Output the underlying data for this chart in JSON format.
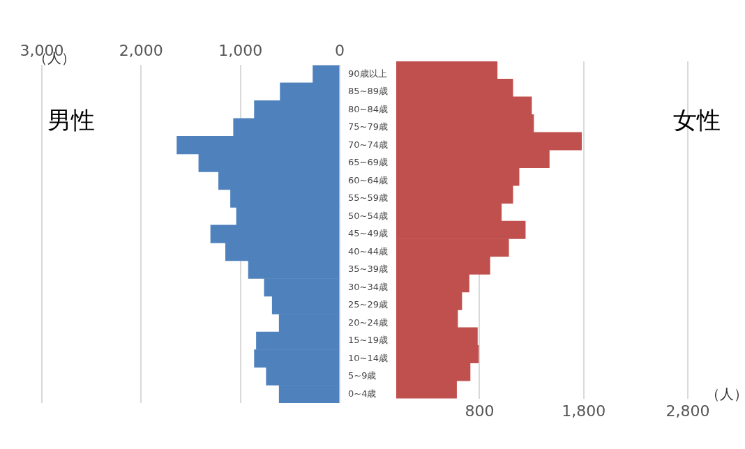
{
  "chart_data": [
    {
      "type": "bar",
      "orientation": "horizontal",
      "title": "男性",
      "xlabel": "（人）",
      "categories": [
        "90歳以上",
        "85~89歳",
        "80~84歳",
        "75~79歳",
        "70~74歳",
        "65~69歳",
        "60~64歳",
        "55~59歳",
        "50~54歳",
        "45~49歳",
        "40~44歳",
        "35~39歳",
        "30~34歳",
        "25~29歳",
        "20~24歳",
        "15~19歳",
        "10~14歳",
        "5~9歳",
        "0~4歳"
      ],
      "series": [
        {
          "color": "#4f81bd",
          "values": [
            270,
            600,
            860,
            1070,
            1640,
            1420,
            1220,
            1100,
            1040,
            1300,
            1150,
            920,
            760,
            680,
            610,
            840,
            860,
            740,
            610
          ]
        }
      ],
      "xlim": [
        3000,
        0
      ],
      "xticks": [
        {
          "value": 3000,
          "label": "3,000"
        },
        {
          "value": 2000,
          "label": "2,000"
        },
        {
          "value": 1000,
          "label": "1,000"
        },
        0
      ],
      "grid": "x",
      "legend": false
    },
    {
      "type": "bar",
      "orientation": "horizontal",
      "title": "女性",
      "xlabel": "（人）",
      "categories": [
        null,
        null,
        null,
        null,
        null,
        null,
        null,
        null,
        null,
        null,
        null,
        null,
        null,
        null,
        null,
        null,
        null,
        null,
        null
      ],
      "series": [
        {
          "color": "#c0504d",
          "values": [
            970,
            1120,
            1300,
            1320,
            1780,
            1470,
            1180,
            1120,
            1010,
            1240,
            1080,
            900,
            700,
            630,
            590,
            780,
            790,
            710,
            580
          ]
        }
      ],
      "xlim": [
        0,
        2800
      ],
      "xticks": [
        800,
        {
          "value": 1800,
          "label": "1,800"
        },
        {
          "value": 2800,
          "label": "2,800"
        }
      ],
      "grid": "x",
      "legend": false,
      "tick_labels": "x"
    }
  ]
}
